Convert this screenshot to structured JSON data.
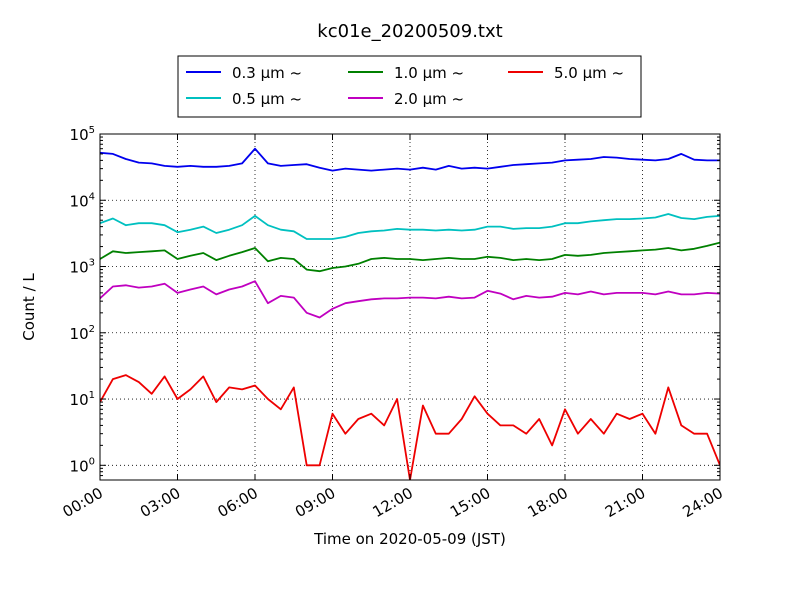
{
  "chart_data": {
    "type": "line",
    "title": "kc01e_20200509.txt",
    "xlabel": "Time on 2020-05-09 (JST)",
    "ylabel": "Count / L",
    "yscale": "log",
    "grid": true,
    "legend_position": "top-center",
    "xlim": [
      "2020-05-09 00:00",
      "2020-05-10 00:00"
    ],
    "ylim": [
      0.6,
      100000
    ],
    "x_ticks": [
      "00:00",
      "03:00",
      "06:00",
      "09:00",
      "12:00",
      "15:00",
      "18:00",
      "21:00",
      "24:00"
    ],
    "y_ticks": [
      {
        "base": "10",
        "exp": "0",
        "value": 1
      },
      {
        "base": "10",
        "exp": "1",
        "value": 10
      },
      {
        "base": "10",
        "exp": "2",
        "value": 100
      },
      {
        "base": "10",
        "exp": "3",
        "value": 1000
      },
      {
        "base": "10",
        "exp": "4",
        "value": 10000
      },
      {
        "base": "10",
        "exp": "5",
        "value": 100000
      }
    ],
    "x": [
      "00:00",
      "00:30",
      "01:00",
      "01:30",
      "02:00",
      "02:30",
      "03:00",
      "03:30",
      "04:00",
      "04:30",
      "05:00",
      "05:30",
      "06:00",
      "06:30",
      "07:00",
      "07:30",
      "08:00",
      "08:30",
      "09:00",
      "09:30",
      "10:00",
      "10:30",
      "11:00",
      "11:30",
      "12:00",
      "12:30",
      "13:00",
      "13:30",
      "14:00",
      "14:30",
      "15:00",
      "15:30",
      "16:00",
      "16:30",
      "17:00",
      "17:30",
      "18:00",
      "18:30",
      "19:00",
      "19:30",
      "20:00",
      "20:30",
      "21:00",
      "21:30",
      "22:00",
      "22:30",
      "23:00",
      "23:30",
      "24:00"
    ],
    "series": [
      {
        "name": "0.3 μm ~",
        "color": "#0000ee",
        "values": [
          52000,
          50000,
          42000,
          37000,
          36000,
          33000,
          32000,
          33000,
          32000,
          32000,
          33000,
          36000,
          60000,
          36000,
          33000,
          34000,
          35000,
          31000,
          28000,
          30000,
          29000,
          28000,
          29000,
          30000,
          29000,
          31000,
          29000,
          33000,
          30000,
          31000,
          30000,
          32000,
          34000,
          35000,
          36000,
          37000,
          40000,
          41000,
          42000,
          45000,
          44000,
          42000,
          41000,
          40000,
          42000,
          50000,
          41000,
          40000,
          40000
        ]
      },
      {
        "name": "0.5 μm ~",
        "color": "#00c0c0",
        "values": [
          4500,
          5300,
          4200,
          4500,
          4500,
          4200,
          3300,
          3600,
          4000,
          3200,
          3600,
          4200,
          5800,
          4200,
          3600,
          3400,
          2600,
          2600,
          2600,
          2800,
          3200,
          3400,
          3500,
          3700,
          3600,
          3600,
          3500,
          3600,
          3500,
          3600,
          4000,
          4000,
          3700,
          3800,
          3800,
          4000,
          4500,
          4500,
          4800,
          5000,
          5200,
          5200,
          5300,
          5500,
          6200,
          5400,
          5200,
          5600,
          5800
        ]
      },
      {
        "name": "1.0 μm ~",
        "color": "#008000",
        "values": [
          1300,
          1700,
          1600,
          1650,
          1700,
          1750,
          1300,
          1450,
          1600,
          1250,
          1450,
          1650,
          1900,
          1200,
          1350,
          1300,
          900,
          850,
          950,
          1000,
          1100,
          1300,
          1350,
          1300,
          1300,
          1250,
          1300,
          1350,
          1300,
          1300,
          1400,
          1350,
          1250,
          1300,
          1250,
          1300,
          1500,
          1450,
          1500,
          1600,
          1650,
          1700,
          1750,
          1800,
          1900,
          1750,
          1850,
          2050,
          2300
        ]
      },
      {
        "name": "2.0 μm ~",
        "color": "#c000c0",
        "values": [
          330,
          500,
          520,
          480,
          500,
          550,
          400,
          450,
          500,
          380,
          450,
          500,
          600,
          280,
          360,
          340,
          200,
          170,
          230,
          280,
          300,
          320,
          330,
          330,
          340,
          340,
          330,
          350,
          330,
          340,
          430,
          390,
          320,
          360,
          340,
          350,
          400,
          380,
          420,
          380,
          400,
          400,
          400,
          380,
          420,
          380,
          380,
          400,
          390
        ]
      },
      {
        "name": "5.0 μm ~",
        "color": "#ee0000",
        "values": [
          9,
          20,
          23,
          18,
          12,
          22,
          10,
          14,
          22,
          9,
          15,
          14,
          16,
          10,
          7,
          15,
          1,
          1,
          6,
          3,
          5,
          6,
          4,
          10,
          0.6,
          8,
          3,
          3,
          5,
          11,
          6,
          4,
          4,
          3,
          5,
          2,
          7,
          3,
          5,
          3,
          6,
          5,
          6,
          3,
          15,
          4,
          3,
          3,
          1
        ]
      }
    ]
  }
}
